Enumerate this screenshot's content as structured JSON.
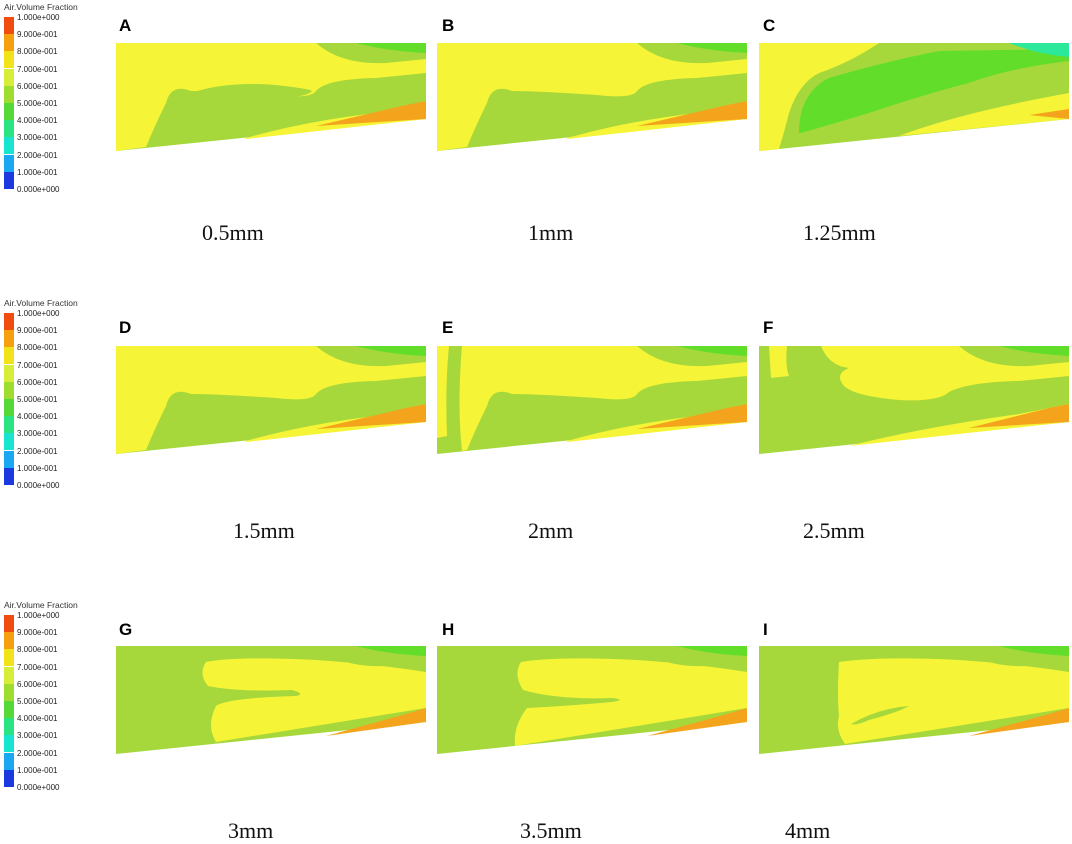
{
  "legend": {
    "title": "Air.Volume Fraction",
    "ticks": [
      "1.000e+000",
      "9.000e-001",
      "8.000e-001",
      "7.000e-001",
      "6.000e-001",
      "5.000e-001",
      "4.000e-001",
      "3.000e-001",
      "2.000e-001",
      "1.000e-001",
      "0.000e+000"
    ],
    "colors": [
      "#f04c10",
      "#f6a010",
      "#f2e21a",
      "#d6ee3a",
      "#9fdc30",
      "#55d838",
      "#2ae484",
      "#18e4d0",
      "#1aa8f2",
      "#1a74f0",
      "#1a3ae0"
    ]
  },
  "panels": [
    {
      "letter": "A",
      "caption": "0.5mm"
    },
    {
      "letter": "B",
      "caption": "1mm"
    },
    {
      "letter": "C",
      "caption": "1.25mm"
    },
    {
      "letter": "D",
      "caption": "1.5mm"
    },
    {
      "letter": "E",
      "caption": "2mm"
    },
    {
      "letter": "F",
      "caption": "2.5mm"
    },
    {
      "letter": "G",
      "caption": "3mm"
    },
    {
      "letter": "H",
      "caption": "3.5mm"
    },
    {
      "letter": "I",
      "caption": "4mm"
    }
  ],
  "colors": {
    "green_base": "#a6d83c",
    "yellow": "#f6f436",
    "green_dark": "#62de2a",
    "cyan": "#2ce89a",
    "orange": "#f4a41c"
  }
}
